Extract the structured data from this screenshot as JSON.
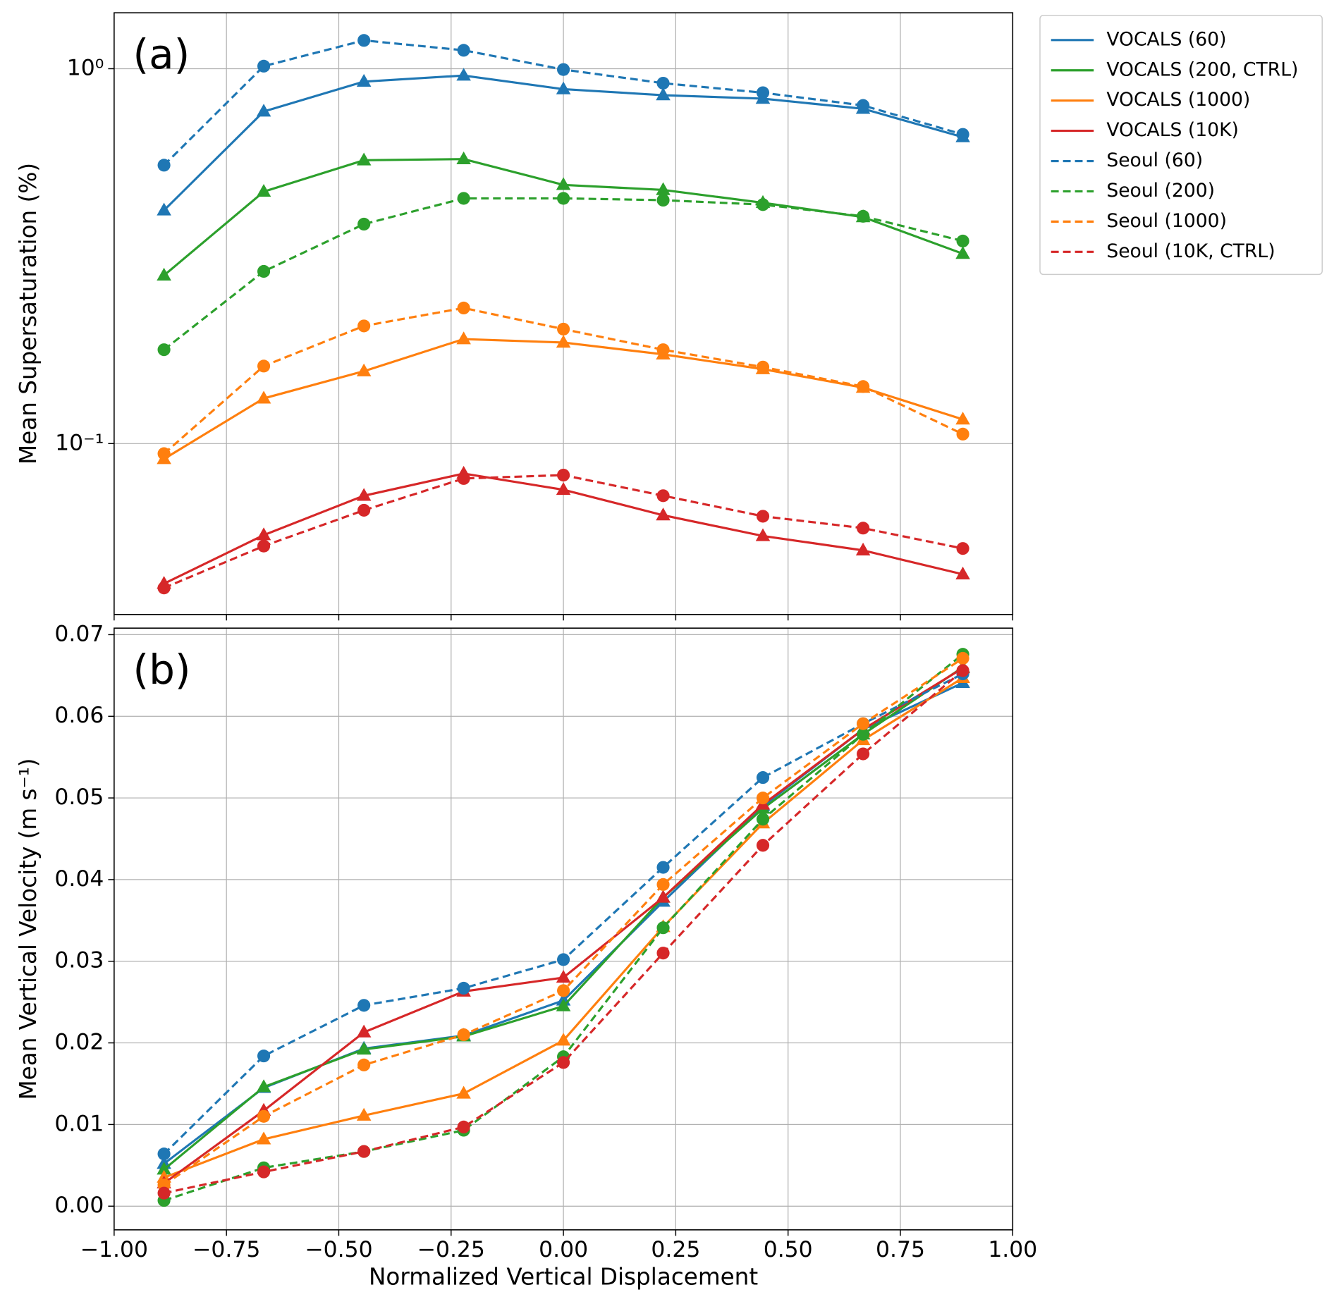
{
  "chart_data": [
    {
      "type": "line",
      "label": "(a)",
      "ylabel": "Mean Supersaturation (%)",
      "ylog": true,
      "grid": true,
      "legend": "outside upper right",
      "x": [
        -0.889,
        -0.667,
        -0.444,
        -0.222,
        0,
        0.222,
        0.444,
        0.667,
        0.889
      ],
      "xlim": [
        -1,
        1
      ],
      "xticks": [
        -1,
        -0.75,
        -0.5,
        -0.25,
        0,
        0.25,
        0.5,
        0.75,
        1
      ],
      "ylim": [
        0.035,
        1.41
      ],
      "yticks": [
        {
          "value": 0.1,
          "label": "10⁻¹"
        },
        {
          "value": 1,
          "label": "10⁰"
        }
      ],
      "series": [
        {
          "name": "VOCALS (60)",
          "color": "#1f77b4",
          "dashed": false,
          "marker": "triangle",
          "values": [
            0.419,
            0.769,
            0.924,
            0.959,
            0.882,
            0.85,
            0.832,
            0.782,
            0.657
          ]
        },
        {
          "name": "VOCALS (200, CTRL)",
          "color": "#2ca02c",
          "dashed": false,
          "marker": "triangle",
          "values": [
            0.281,
            0.47,
            0.57,
            0.574,
            0.49,
            0.475,
            0.439,
            0.402,
            0.321
          ]
        },
        {
          "name": "VOCALS (1000)",
          "color": "#ff7f0e",
          "dashed": false,
          "marker": "triangle",
          "values": [
            0.091,
            0.132,
            0.156,
            0.19,
            0.186,
            0.173,
            0.158,
            0.141,
            0.116
          ]
        },
        {
          "name": "VOCALS (10K)",
          "color": "#d62728",
          "dashed": false,
          "marker": "triangle",
          "values": [
            0.0423,
            0.057,
            0.0726,
            0.0832,
            0.0753,
            0.0644,
            0.0567,
            0.0519,
            0.0448
          ]
        },
        {
          "name": "Seoul (60)",
          "color": "#1f77b4",
          "dashed": true,
          "marker": "circle",
          "values": [
            0.553,
            1.016,
            1.19,
            1.12,
            0.995,
            0.915,
            0.863,
            0.798,
            0.668
          ]
        },
        {
          "name": "Seoul (200)",
          "color": "#2ca02c",
          "dashed": true,
          "marker": "circle",
          "values": [
            0.178,
            0.288,
            0.385,
            0.451,
            0.451,
            0.446,
            0.434,
            0.404,
            0.347
          ]
        },
        {
          "name": "Seoul (1000)",
          "color": "#ff7f0e",
          "dashed": true,
          "marker": "circle",
          "values": [
            0.094,
            0.161,
            0.206,
            0.23,
            0.202,
            0.178,
            0.16,
            0.142,
            0.106
          ]
        },
        {
          "name": "Seoul (10K, CTRL)",
          "color": "#d62728",
          "dashed": true,
          "marker": "circle",
          "values": [
            0.0412,
            0.0533,
            0.0664,
            0.0807,
            0.0824,
            0.0726,
            0.064,
            0.0595,
            0.0525
          ]
        }
      ]
    },
    {
      "type": "line",
      "label": "(b)",
      "ylabel": "Mean Vertical Velocity (m s⁻¹)",
      "xlabel": "Normalized Vertical Displacement",
      "ylog": false,
      "grid": true,
      "x": [
        -0.889,
        -0.667,
        -0.444,
        -0.222,
        0,
        0.222,
        0.444,
        0.667,
        0.889
      ],
      "xlim": [
        -1,
        1
      ],
      "xticks": [
        {
          "value": -1,
          "label": "−1.00"
        },
        {
          "value": -0.75,
          "label": "−0.75"
        },
        {
          "value": -0.5,
          "label": "−0.50"
        },
        {
          "value": -0.25,
          "label": "−0.25"
        },
        {
          "value": 0,
          "label": "0.00"
        },
        {
          "value": 0.25,
          "label": "0.25"
        },
        {
          "value": 0.5,
          "label": "0.50"
        },
        {
          "value": 0.75,
          "label": "0.75"
        },
        {
          "value": 1,
          "label": "1.00"
        }
      ],
      "ylim": [
        -0.0029,
        0.0708
      ],
      "yticks": [
        {
          "value": 0,
          "label": "0.00"
        },
        {
          "value": 0.01,
          "label": "0.01"
        },
        {
          "value": 0.02,
          "label": "0.02"
        },
        {
          "value": 0.03,
          "label": "0.03"
        },
        {
          "value": 0.04,
          "label": "0.04"
        },
        {
          "value": 0.05,
          "label": "0.05"
        },
        {
          "value": 0.06,
          "label": "0.06"
        },
        {
          "value": 0.07,
          "label": "0.07"
        }
      ],
      "series": [
        {
          "color": "#1f77b4",
          "dashed": false,
          "marker": "triangle",
          "values": [
            0.0052,
            0.0145,
            0.0193,
            0.0209,
            0.0252,
            0.0373,
            0.049,
            0.0584,
            0.0641
          ]
        },
        {
          "color": "#2ca02c",
          "dashed": false,
          "marker": "triangle",
          "values": [
            0.0045,
            0.0146,
            0.0192,
            0.0208,
            0.0245,
            0.0378,
            0.0487,
            0.0578,
            0.066
          ]
        },
        {
          "color": "#ff7f0e",
          "dashed": false,
          "marker": "triangle",
          "values": [
            0.0035,
            0.0082,
            0.0111,
            0.0138,
            0.0203,
            0.0342,
            0.0469,
            0.0571,
            0.0647
          ]
        },
        {
          "color": "#d62728",
          "dashed": false,
          "marker": "triangle",
          "values": [
            0.0028,
            0.0117,
            0.0213,
            0.0263,
            0.028,
            0.0378,
            0.0492,
            0.0584,
            0.0659
          ]
        },
        {
          "color": "#1f77b4",
          "dashed": true,
          "marker": "circle",
          "values": [
            0.0064,
            0.0184,
            0.0246,
            0.0267,
            0.0302,
            0.0415,
            0.0525,
            0.0591,
            0.0652
          ]
        },
        {
          "color": "#2ca02c",
          "dashed": true,
          "marker": "circle",
          "values": [
            0.0007,
            0.0047,
            0.0067,
            0.0093,
            0.0183,
            0.0341,
            0.0474,
            0.0578,
            0.0676
          ]
        },
        {
          "color": "#ff7f0e",
          "dashed": true,
          "marker": "circle",
          "values": [
            0.0026,
            0.011,
            0.0173,
            0.021,
            0.0264,
            0.0394,
            0.05,
            0.0591,
            0.0671
          ]
        },
        {
          "color": "#d62728",
          "dashed": true,
          "marker": "circle",
          "values": [
            0.0016,
            0.0042,
            0.0067,
            0.0097,
            0.0176,
            0.031,
            0.0442,
            0.0554,
            0.0656
          ]
        }
      ]
    }
  ]
}
